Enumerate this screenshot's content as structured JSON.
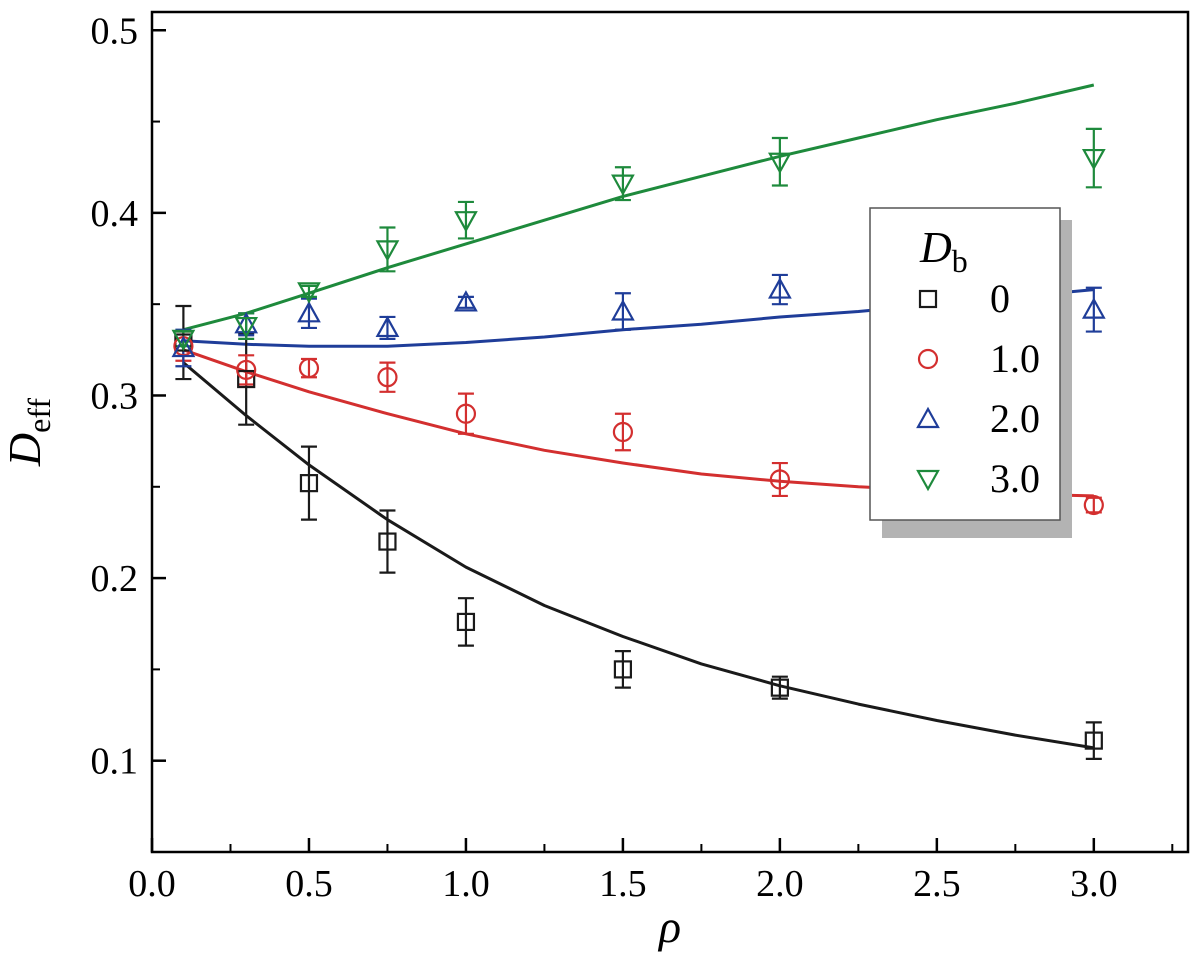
{
  "chart_data": {
    "type": "scatter",
    "title": "",
    "xlabel": "ρ",
    "ylabel_main": "D",
    "ylabel_sub": "eff",
    "xlim": [
      0.0,
      3.3
    ],
    "ylim": [
      0.05,
      0.51
    ],
    "xticks": [
      0.0,
      0.5,
      1.0,
      1.5,
      2.0,
      2.5,
      3.0
    ],
    "xtick_labels": [
      "0.0",
      "0.5",
      "1.0",
      "1.5",
      "2.0",
      "2.5",
      "3.0"
    ],
    "yticks": [
      0.1,
      0.2,
      0.3,
      0.4,
      0.5
    ],
    "ytick_labels": [
      "0.1",
      "0.2",
      "0.3",
      "0.4",
      "0.5"
    ],
    "grid": false,
    "legend": {
      "title_main": "D",
      "title_sub": "b",
      "placement": "right"
    },
    "series": [
      {
        "name": "0",
        "marker": "square",
        "color": "#1a1a1a",
        "points": [
          {
            "x": 0.1,
            "y": 0.329,
            "err": 0.02
          },
          {
            "x": 0.3,
            "y": 0.309,
            "err": 0.025
          },
          {
            "x": 0.5,
            "y": 0.252,
            "err": 0.02
          },
          {
            "x": 0.75,
            "y": 0.22,
            "err": 0.017
          },
          {
            "x": 1.0,
            "y": 0.176,
            "err": 0.013
          },
          {
            "x": 1.5,
            "y": 0.15,
            "err": 0.01
          },
          {
            "x": 2.0,
            "y": 0.14,
            "err": 0.006
          },
          {
            "x": 3.0,
            "y": 0.111,
            "err": 0.01
          }
        ],
        "fit": [
          [
            0.1,
            0.318
          ],
          [
            0.3,
            0.289
          ],
          [
            0.5,
            0.262
          ],
          [
            0.75,
            0.232
          ],
          [
            1.0,
            0.206
          ],
          [
            1.25,
            0.185
          ],
          [
            1.5,
            0.168
          ],
          [
            1.75,
            0.153
          ],
          [
            2.0,
            0.141
          ],
          [
            2.25,
            0.131
          ],
          [
            2.5,
            0.122
          ],
          [
            2.75,
            0.114
          ],
          [
            3.0,
            0.107
          ]
        ]
      },
      {
        "name": "1.0",
        "marker": "circle",
        "color": "#d32f2f",
        "points": [
          {
            "x": 0.1,
            "y": 0.327,
            "err": 0.008
          },
          {
            "x": 0.3,
            "y": 0.314,
            "err": 0.008
          },
          {
            "x": 0.5,
            "y": 0.315,
            "err": 0.005
          },
          {
            "x": 0.75,
            "y": 0.31,
            "err": 0.008
          },
          {
            "x": 1.0,
            "y": 0.29,
            "err": 0.011
          },
          {
            "x": 1.5,
            "y": 0.28,
            "err": 0.01
          },
          {
            "x": 2.0,
            "y": 0.254,
            "err": 0.009
          },
          {
            "x": 3.0,
            "y": 0.24,
            "err": 0.004
          }
        ],
        "fit": [
          [
            0.1,
            0.325
          ],
          [
            0.3,
            0.313
          ],
          [
            0.5,
            0.302
          ],
          [
            0.75,
            0.29
          ],
          [
            1.0,
            0.279
          ],
          [
            1.25,
            0.27
          ],
          [
            1.5,
            0.263
          ],
          [
            1.75,
            0.257
          ],
          [
            2.0,
            0.253
          ],
          [
            2.25,
            0.25
          ],
          [
            2.5,
            0.248
          ],
          [
            2.75,
            0.246
          ],
          [
            3.0,
            0.245
          ]
        ]
      },
      {
        "name": "2.0",
        "marker": "triangle-up",
        "color": "#1f3d99",
        "points": [
          {
            "x": 0.1,
            "y": 0.326,
            "err": 0.01
          },
          {
            "x": 0.3,
            "y": 0.339,
            "err": 0.006
          },
          {
            "x": 0.5,
            "y": 0.345,
            "err": 0.008
          },
          {
            "x": 0.75,
            "y": 0.337,
            "err": 0.006
          },
          {
            "x": 1.0,
            "y": 0.351,
            "err": 0.003
          },
          {
            "x": 1.5,
            "y": 0.346,
            "err": 0.01
          },
          {
            "x": 2.0,
            "y": 0.358,
            "err": 0.008
          },
          {
            "x": 3.0,
            "y": 0.347,
            "err": 0.012
          }
        ],
        "fit": [
          [
            0.1,
            0.33
          ],
          [
            0.3,
            0.328
          ],
          [
            0.5,
            0.327
          ],
          [
            0.75,
            0.327
          ],
          [
            1.0,
            0.329
          ],
          [
            1.25,
            0.332
          ],
          [
            1.5,
            0.336
          ],
          [
            1.75,
            0.339
          ],
          [
            2.0,
            0.343
          ],
          [
            2.25,
            0.346
          ],
          [
            2.5,
            0.35
          ],
          [
            2.75,
            0.354
          ],
          [
            3.0,
            0.358
          ]
        ]
      },
      {
        "name": "3.0",
        "marker": "triangle-down",
        "color": "#1e8a3c",
        "points": [
          {
            "x": 0.1,
            "y": 0.331,
            "err": 0.004
          },
          {
            "x": 0.3,
            "y": 0.338,
            "err": 0.007
          },
          {
            "x": 0.5,
            "y": 0.357,
            "err": 0.003
          },
          {
            "x": 0.75,
            "y": 0.38,
            "err": 0.012
          },
          {
            "x": 1.0,
            "y": 0.396,
            "err": 0.01
          },
          {
            "x": 1.5,
            "y": 0.416,
            "err": 0.009
          },
          {
            "x": 2.0,
            "y": 0.428,
            "err": 0.013
          },
          {
            "x": 3.0,
            "y": 0.43,
            "err": 0.016
          }
        ],
        "fit": [
          [
            0.1,
            0.336
          ],
          [
            0.3,
            0.345
          ],
          [
            0.5,
            0.356
          ],
          [
            0.75,
            0.37
          ],
          [
            1.0,
            0.383
          ],
          [
            1.25,
            0.396
          ],
          [
            1.5,
            0.409
          ],
          [
            1.75,
            0.42
          ],
          [
            2.0,
            0.431
          ],
          [
            2.25,
            0.441
          ],
          [
            2.5,
            0.451
          ],
          [
            2.75,
            0.46
          ],
          [
            3.0,
            0.47
          ]
        ]
      }
    ]
  }
}
